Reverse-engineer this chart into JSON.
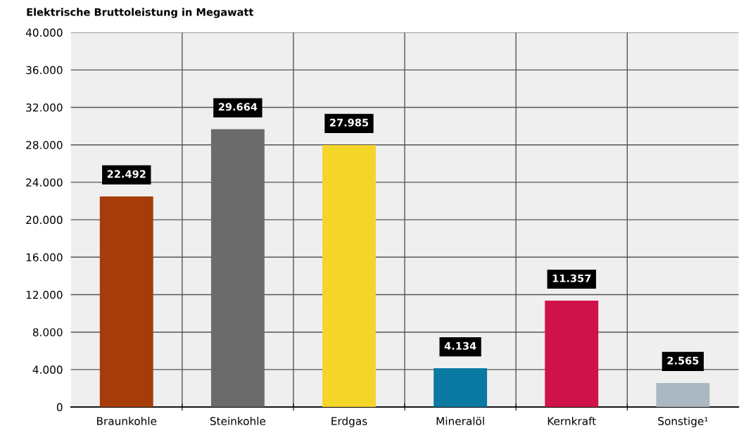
{
  "chart_data": {
    "type": "bar",
    "title": "Elektrische Bruttoleistung in Megawatt",
    "categories": [
      "Braunkohle",
      "Steinkohle",
      "Erdgas",
      "Mineralöl",
      "Kernkraft",
      "Sonstige¹"
    ],
    "values": [
      22492,
      29664,
      27985,
      4134,
      11357,
      2565
    ],
    "colors": [
      "#a63c0a",
      "#6b6b6b",
      "#f6d52a",
      "#0a7aa3",
      "#d0124a",
      "#a9b8c2"
    ],
    "value_labels": [
      "22.492",
      "29.664",
      "27.985",
      "4.134",
      "11.357",
      "2.565"
    ],
    "ylim": [
      0,
      40000
    ],
    "yticks": [
      {
        "value": 0,
        "label": "0"
      },
      {
        "value": 4000,
        "label": "4.000"
      },
      {
        "value": 8000,
        "label": "8.000"
      },
      {
        "value": 12000,
        "label": "12.000"
      },
      {
        "value": 16000,
        "label": "16.000"
      },
      {
        "value": 20000,
        "label": "20.000"
      },
      {
        "value": 24000,
        "label": "24.000"
      },
      {
        "value": 28000,
        "label": "28.000"
      },
      {
        "value": 32000,
        "label": "32.000"
      },
      {
        "value": 36000,
        "label": "36.000"
      },
      {
        "value": 40000,
        "label": "40.000"
      }
    ],
    "grid": true
  }
}
